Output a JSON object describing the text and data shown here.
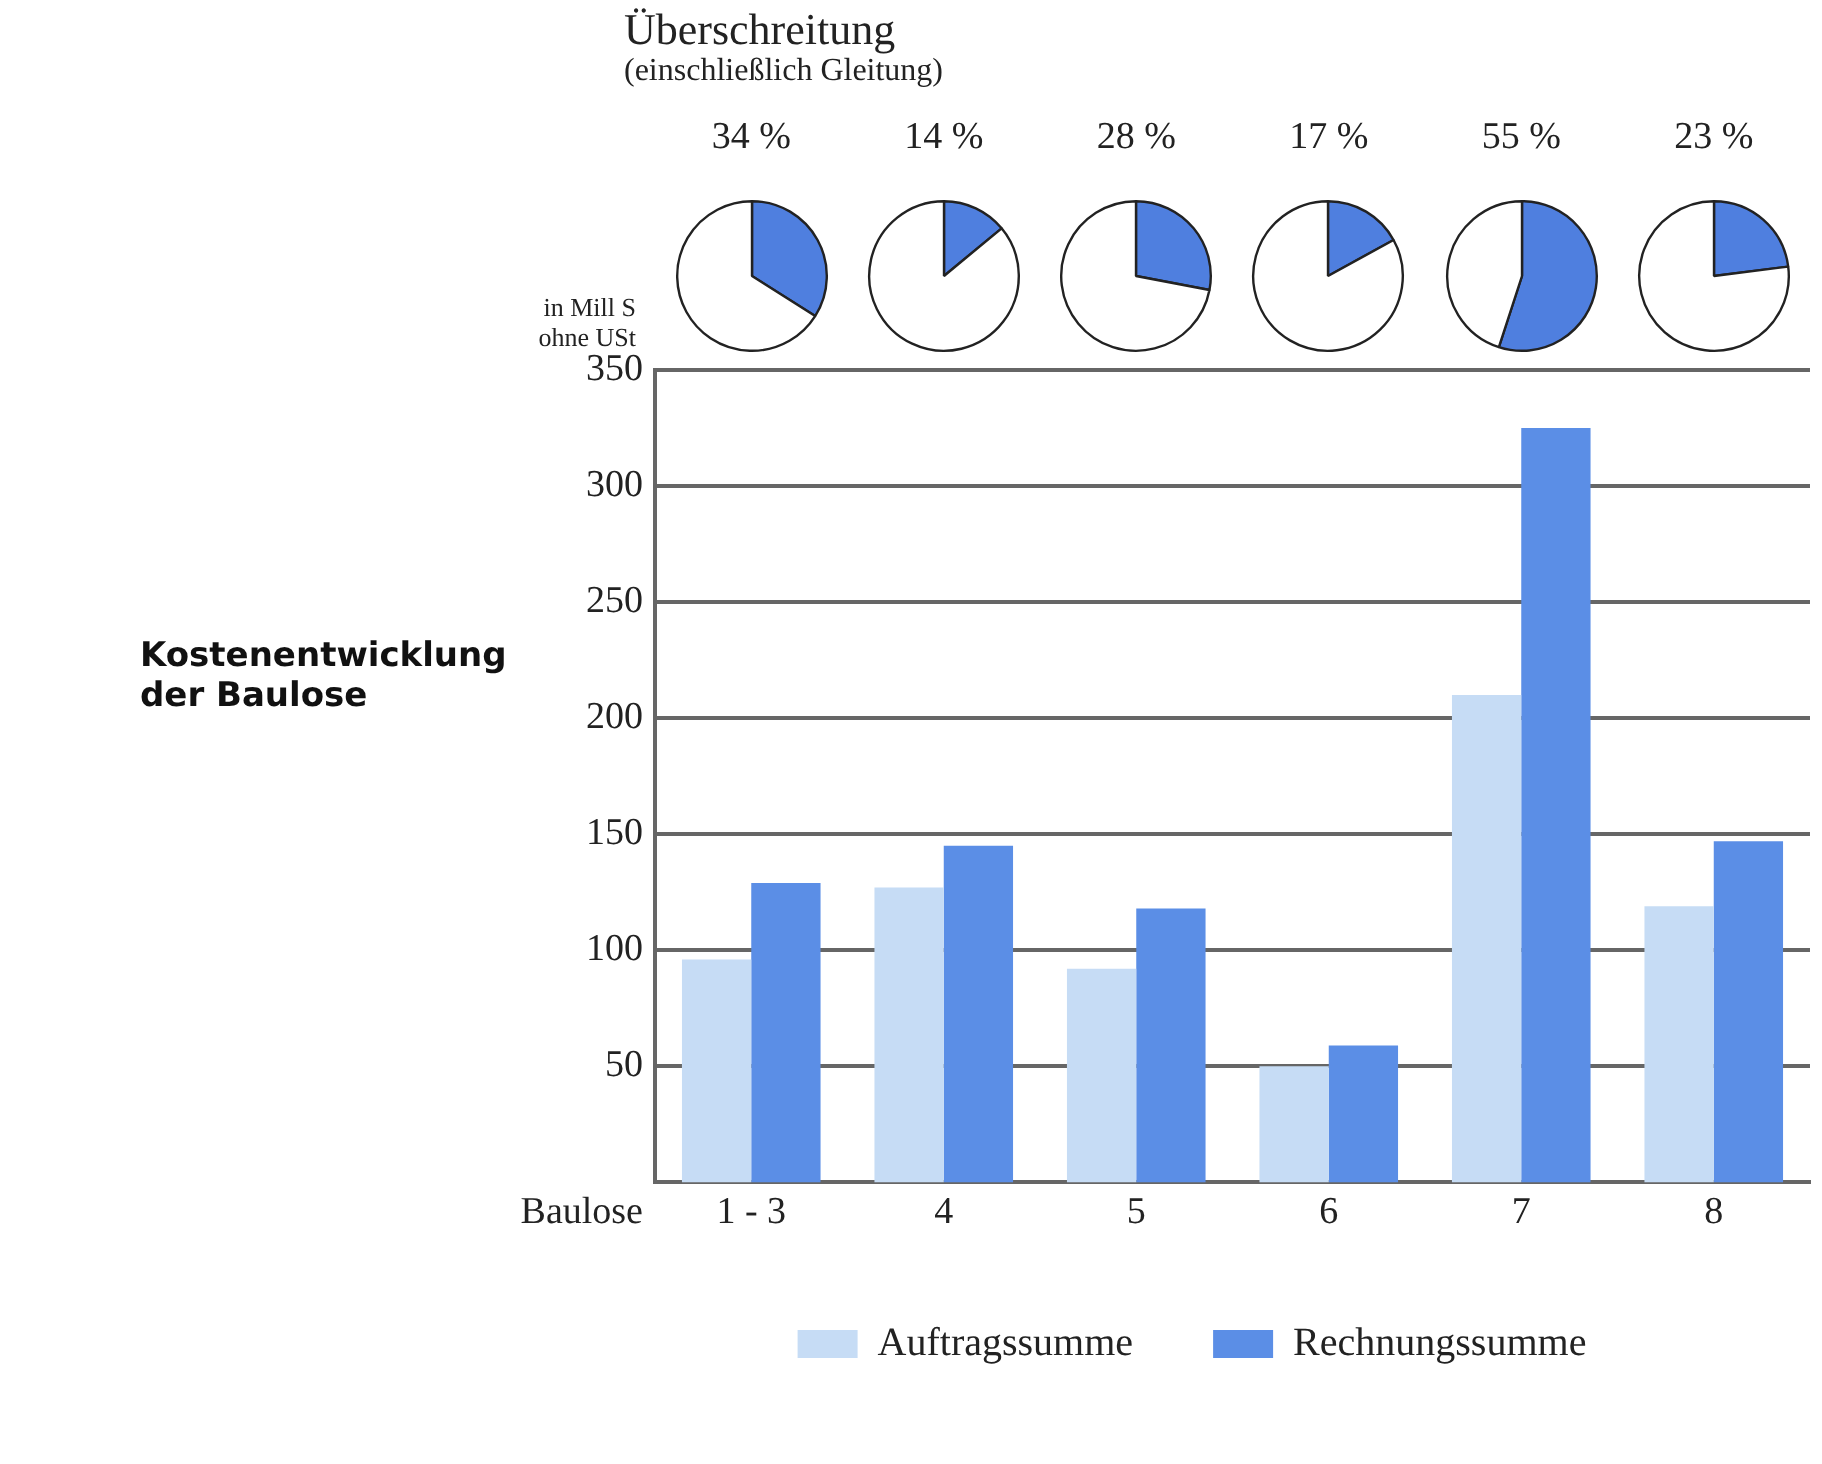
{
  "chart_data": [
    {
      "type": "bar",
      "title": "Kostenentwicklung der Baulose",
      "ylabel": "in Mill S ohne USt",
      "xlabel": "Baulose",
      "annotations": [
        "Überschreitung",
        "(einschließlich Gleitung)"
      ],
      "categories": [
        "1 - 3",
        "4",
        "5",
        "6",
        "7",
        "8"
      ],
      "series": [
        {
          "name": "Auftragssumme",
          "color": "#c6dcf5",
          "values": [
            96,
            127,
            92,
            50,
            210,
            119
          ]
        },
        {
          "name": "Rechnungssumme",
          "color": "#5b8ee6",
          "values": [
            129,
            145,
            118,
            59,
            325,
            147
          ]
        }
      ],
      "ylim": [
        0,
        350
      ],
      "yticks": [
        50,
        100,
        150,
        200,
        250,
        300,
        350
      ],
      "grid": "y",
      "legend": "bottom"
    },
    {
      "type": "pie",
      "title": "34 %",
      "categories": [
        null,
        null
      ],
      "values": [
        34,
        66
      ],
      "colors": [
        "#4f7fdf",
        "#ffffff"
      ]
    },
    {
      "type": "pie",
      "title": "14 %",
      "categories": [
        null,
        null
      ],
      "values": [
        14,
        86
      ],
      "colors": [
        "#4f7fdf",
        "#ffffff"
      ]
    },
    {
      "type": "pie",
      "title": "28 %",
      "categories": [
        null,
        null
      ],
      "values": [
        28,
        72
      ],
      "colors": [
        "#4f7fdf",
        "#ffffff"
      ]
    },
    {
      "type": "pie",
      "title": "17 %",
      "categories": [
        null,
        null
      ],
      "values": [
        17,
        83
      ],
      "colors": [
        "#4f7fdf",
        "#ffffff"
      ]
    },
    {
      "type": "pie",
      "title": "55 %",
      "categories": [
        null,
        null
      ],
      "values": [
        55,
        45
      ],
      "colors": [
        "#4f7fdf",
        "#ffffff"
      ]
    },
    {
      "type": "pie",
      "title": "23 %",
      "categories": [
        null,
        null
      ],
      "values": [
        23,
        77
      ],
      "colors": [
        "#4f7fdf",
        "#ffffff"
      ]
    }
  ]
}
